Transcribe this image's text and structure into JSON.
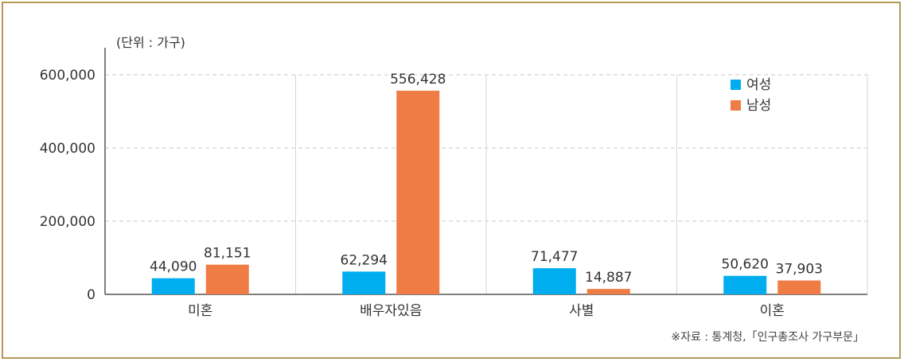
{
  "chart_data": {
    "type": "bar",
    "unit_label": "(단위 : 가구)",
    "categories": [
      "미혼",
      "배우자있음",
      "사별",
      "이혼"
    ],
    "series": [
      {
        "name": "여성",
        "color": "#00aeef",
        "values": [
          44090,
          62294,
          71477,
          50620
        ]
      },
      {
        "name": "남성",
        "color": "#ef7b45",
        "values": [
          81151,
          556428,
          14887,
          37903
        ]
      }
    ],
    "data_labels": [
      [
        "44,090",
        "62,294",
        "71,477",
        "50,620"
      ],
      [
        "81,151",
        "556,428",
        "14,887",
        "37,903"
      ]
    ],
    "y_ticks": [
      0,
      200000,
      400000,
      600000
    ],
    "y_tick_labels": [
      "0",
      "200,000",
      "400,000",
      "600,000"
    ],
    "ylim": [
      0,
      600000
    ],
    "grid": true,
    "legend_position": "top-right",
    "source": "※자료 : 통계청,「인구총조사 가구부문」"
  }
}
